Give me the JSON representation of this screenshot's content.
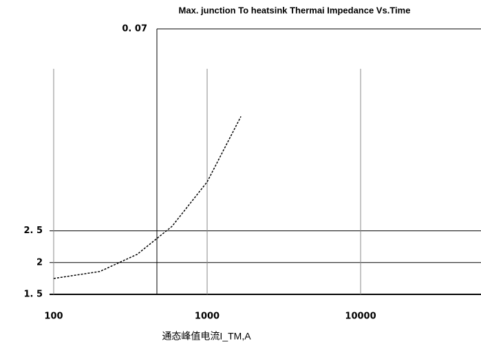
{
  "chart_data": [
    {
      "type": "line",
      "x_label": "通态峰值电流I_TM,A",
      "x": [
        100,
        200,
        350,
        590,
        1000,
        1660
      ],
      "values": [
        1.75,
        1.86,
        2.13,
        2.57,
        3.27,
        4.3
      ],
      "color": "#000000",
      "log_x": true,
      "xlim": [
        100,
        60000
      ],
      "xticks": [
        100,
        1000,
        10000
      ],
      "ylim": [
        1.5,
        5.7
      ],
      "yticks": [
        {
          "value": 1.5,
          "label": "1. 5"
        },
        2,
        {
          "value": 2.5,
          "label": "2. 5"
        }
      ],
      "grid": true
    },
    {
      "type": "line",
      "title": "Max. junction To heatsink Thermai Impedance Vs.Time",
      "ylim": [
        0,
        0.07
      ],
      "yticks": [
        {
          "value": 0.07,
          "label": "0. 07"
        }
      ],
      "grid": true
    }
  ]
}
